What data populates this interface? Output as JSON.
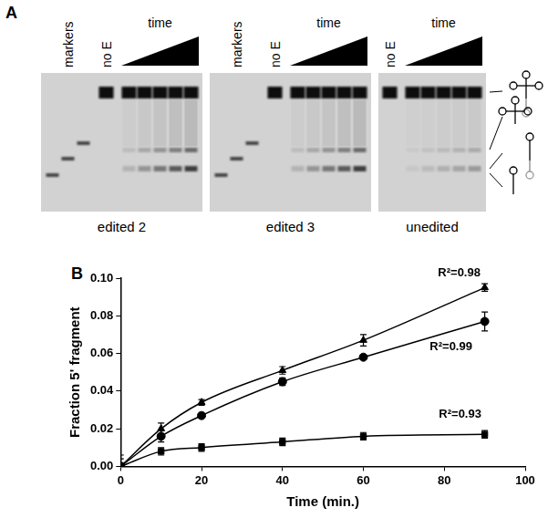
{
  "panel_a": {
    "label": "A",
    "gels": [
      {
        "caption": "edited 2",
        "lanes": [
          "markers",
          "no E",
          "time"
        ]
      },
      {
        "caption": "edited 3",
        "lanes": [
          "markers",
          "no E",
          "time"
        ]
      },
      {
        "caption": "unedited",
        "lanes": [
          "no E",
          "time"
        ]
      }
    ]
  },
  "chart_data": {
    "type": "line",
    "panel_label": "B",
    "x_label": "Time (min.)",
    "y_label": "Fraction 5' fragment",
    "x": [
      0,
      10,
      20,
      40,
      60,
      90
    ],
    "series": [
      {
        "color": "#000000",
        "marker": "triangle",
        "values": [
          0,
          0.02,
          0.034,
          0.051,
          0.067,
          0.095
        ],
        "errors": [
          0.004,
          0.003,
          0.0015,
          0.002,
          0.003,
          0.002
        ],
        "annotation": "R²=0.98"
      },
      {
        "color": "#000000",
        "marker": "circle",
        "values": [
          0,
          0.016,
          0.027,
          0.045,
          0.058,
          0.077
        ],
        "errors": [
          0.006,
          0.003,
          0.001,
          0.002,
          0.001,
          0.005
        ],
        "annotation": "R²=0.99"
      },
      {
        "color": "#000000",
        "marker": "square",
        "values": [
          0,
          0.008,
          0.01,
          0.013,
          0.016,
          0.017
        ],
        "errors": [
          0.002,
          0.002,
          0.002,
          0.002,
          0.002,
          0.002
        ],
        "annotation": "R²=0.93"
      }
    ],
    "xlim": [
      0,
      100
    ],
    "xticks": [
      0,
      20,
      40,
      60,
      80,
      100
    ],
    "ylim": [
      0,
      0.1
    ],
    "yticks": [
      {
        "value": 0,
        "label": "0.00"
      },
      {
        "value": 0.02,
        "label": "0.02"
      },
      {
        "value": 0.04,
        "label": "0.04"
      },
      {
        "value": 0.06,
        "label": "0.06"
      },
      {
        "value": 0.08,
        "label": "0.08"
      },
      {
        "value": 0.1,
        "label": "0.10"
      }
    ],
    "grid": false
  }
}
